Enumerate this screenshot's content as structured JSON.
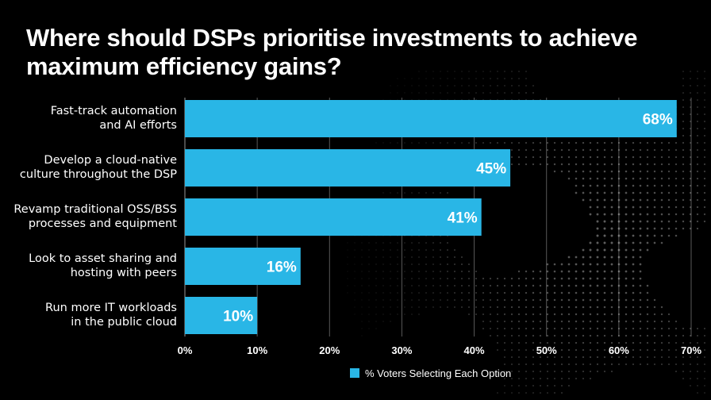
{
  "title": "Where should DSPs prioritise investments to achieve maximum efficiency gains?",
  "colors": {
    "bar": "#29b6e6",
    "background": "#000000",
    "grid": "#ffffff",
    "text": "#ffffff"
  },
  "chart_data": {
    "type": "bar",
    "orientation": "horizontal",
    "title": "Where should DSPs prioritise investments to achieve maximum efficiency gains?",
    "categories": [
      [
        "Fast-track automation",
        "and AI efforts"
      ],
      [
        "Develop a cloud-native",
        "culture throughout the DSP"
      ],
      [
        "Revamp traditional OSS/BSS",
        "processes and equipment"
      ],
      [
        "Look to asset sharing and",
        "hosting with peers"
      ],
      [
        "Run more IT workloads",
        "in the public cloud"
      ]
    ],
    "series": [
      {
        "name": "% Voters Selecting Each Option",
        "values": [
          68,
          45,
          41,
          16,
          10
        ]
      }
    ],
    "data_labels": [
      "68%",
      "45%",
      "41%",
      "16%",
      "10%"
    ],
    "xlim": [
      0,
      70
    ],
    "x_ticks": [
      "0%",
      "10%",
      "20%",
      "30%",
      "40%",
      "50%",
      "60%",
      "70%"
    ],
    "grid": true,
    "legend": "bottom-center"
  }
}
